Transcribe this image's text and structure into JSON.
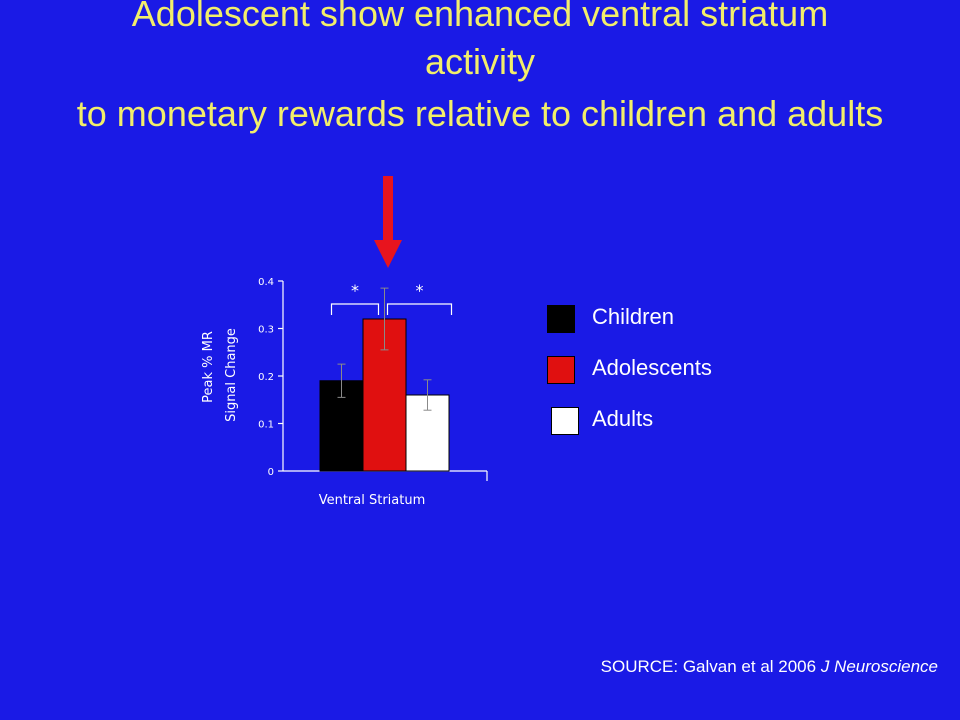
{
  "slide": {
    "title_lines": [
      "Adolescent show enhanced ventral striatum",
      "activity",
      "to monetary rewards relative to children and adults"
    ],
    "source_prefix": "SOURCE: Galvan et al 2006 ",
    "source_journal": "J Neuroscience"
  },
  "colors": {
    "background": "#1a1ae6",
    "title": "#f2ee6a",
    "arrow": "#e8141e"
  },
  "chart_data": {
    "type": "bar",
    "categories": [
      "Ventral Striatum"
    ],
    "xlabel": "Ventral Striatum",
    "ylabel_lines": [
      "Peak % MR",
      "Signal Change"
    ],
    "ylim": [
      0,
      0.4
    ],
    "yticks": [
      "0",
      "0.1",
      "0.2",
      "0.3",
      "0.4"
    ],
    "grid": false,
    "legend_position": "right",
    "series": [
      {
        "name": "Children",
        "values": [
          0.19
        ],
        "error": [
          0.035
        ],
        "color": "#000000"
      },
      {
        "name": "Adolescents",
        "values": [
          0.32
        ],
        "error": [
          0.065
        ],
        "color": "#e01010"
      },
      {
        "name": "Adults",
        "values": [
          0.16
        ],
        "error": [
          0.032
        ],
        "color": "#ffffff"
      }
    ],
    "annotations": [
      {
        "text": "*",
        "between": [
          "Children",
          "Adolescents"
        ]
      },
      {
        "text": "*",
        "between": [
          "Adolescents",
          "Adults"
        ]
      }
    ]
  }
}
